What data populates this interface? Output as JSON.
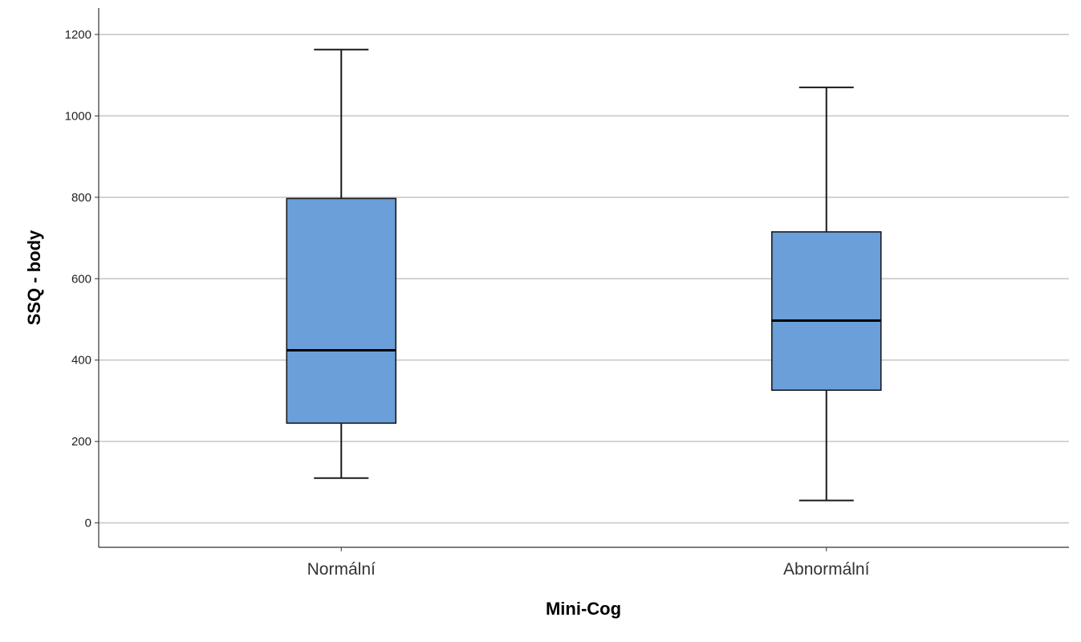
{
  "chart_data": {
    "type": "boxplot",
    "xlabel": "Mini-Cog",
    "ylabel": "SSQ - body",
    "ylim": [
      -60,
      1265
    ],
    "yticks": [
      0,
      200,
      400,
      600,
      800,
      1000,
      1200
    ],
    "grid": true,
    "categories": [
      "Normální",
      "Abnormální"
    ],
    "boxes": [
      {
        "category": "Normální",
        "whisker_low": 110,
        "q1": 245,
        "median": 424,
        "q3": 797,
        "whisker_high": 1163
      },
      {
        "category": "Abnormální",
        "whisker_low": 55,
        "q1": 326,
        "median": 497,
        "q3": 715,
        "whisker_high": 1070
      }
    ],
    "colors": {
      "box_fill": "#6a9fd9",
      "box_stroke": "#1a1a1a",
      "median": "#000000",
      "grid": "#c8c8c8",
      "axis": "#333333"
    }
  }
}
